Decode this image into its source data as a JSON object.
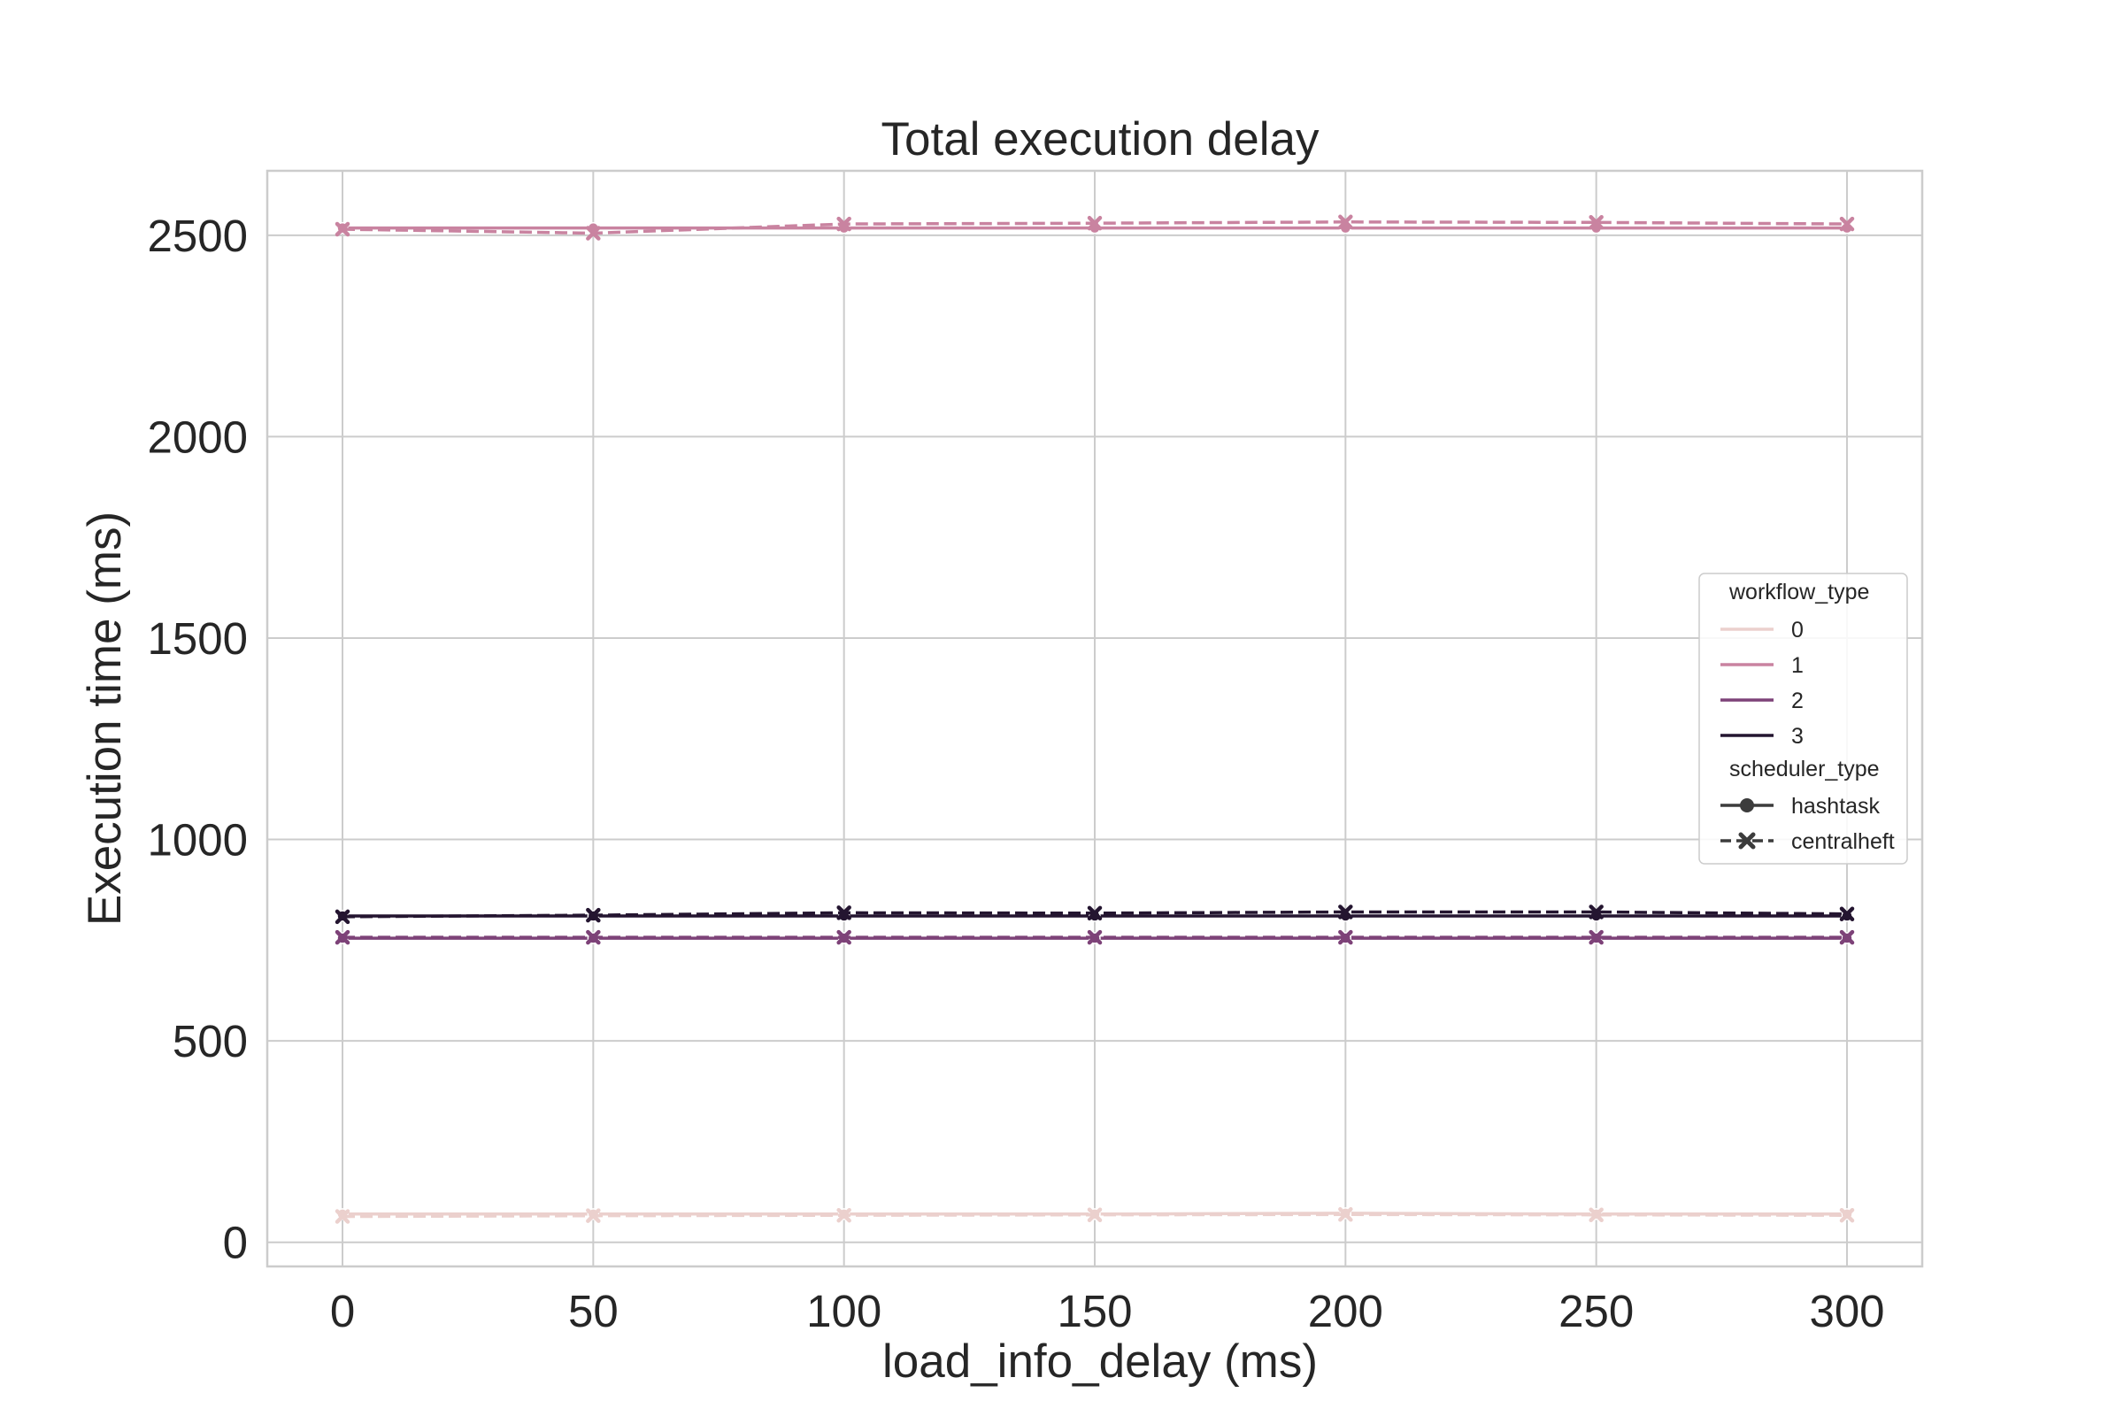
{
  "chart_data": {
    "type": "line",
    "title": "Total execution delay",
    "xlabel": "load_info_delay (ms)",
    "ylabel": "Execution time (ms)",
    "x": [
      0,
      50,
      100,
      150,
      200,
      250,
      300
    ],
    "xlim": [
      -15,
      315
    ],
    "ylim": [
      -60,
      2660
    ],
    "xticks": [
      0,
      50,
      100,
      150,
      200,
      250,
      300
    ],
    "yticks": [
      0,
      500,
      1000,
      1500,
      2000,
      2500
    ],
    "grid": true,
    "legend_position": "center-right",
    "legend": {
      "hue_title": "workflow_type",
      "hue_entries": [
        {
          "label": "0",
          "color": "#ebd0cd"
        },
        {
          "label": "1",
          "color": "#c983a0"
        },
        {
          "label": "2",
          "color": "#7d4278"
        },
        {
          "label": "3",
          "color": "#241530"
        }
      ],
      "style_title": "scheduler_type",
      "style_entries": [
        {
          "label": "hashtask",
          "marker": "circle",
          "dash": "solid"
        },
        {
          "label": "centralheft",
          "marker": "x",
          "dash": "dashed"
        }
      ]
    },
    "series": [
      {
        "workflow_type": "0",
        "scheduler_type": "hashtask",
        "color": "#ebd0cd",
        "values": [
          70,
          70,
          70,
          70,
          72,
          70,
          70
        ]
      },
      {
        "workflow_type": "0",
        "scheduler_type": "centralheft",
        "color": "#ebd0cd",
        "values": [
          64,
          66,
          67,
          68,
          69,
          68,
          67
        ]
      },
      {
        "workflow_type": "1",
        "scheduler_type": "hashtask",
        "color": "#c983a0",
        "values": [
          2518,
          2518,
          2518,
          2518,
          2518,
          2518,
          2518
        ]
      },
      {
        "workflow_type": "1",
        "scheduler_type": "centralheft",
        "color": "#c983a0",
        "values": [
          2515,
          2505,
          2528,
          2530,
          2533,
          2532,
          2528
        ]
      },
      {
        "workflow_type": "2",
        "scheduler_type": "hashtask",
        "color": "#7d4278",
        "values": [
          755,
          755,
          755,
          755,
          755,
          755,
          755
        ]
      },
      {
        "workflow_type": "2",
        "scheduler_type": "centralheft",
        "color": "#7d4278",
        "values": [
          757,
          757,
          757,
          757,
          757,
          757,
          757
        ]
      },
      {
        "workflow_type": "3",
        "scheduler_type": "hashtask",
        "color": "#241530",
        "values": [
          810,
          810,
          810,
          810,
          810,
          810,
          810
        ]
      },
      {
        "workflow_type": "3",
        "scheduler_type": "centralheft",
        "color": "#241530",
        "values": [
          808,
          812,
          818,
          817,
          820,
          820,
          815
        ]
      }
    ]
  }
}
